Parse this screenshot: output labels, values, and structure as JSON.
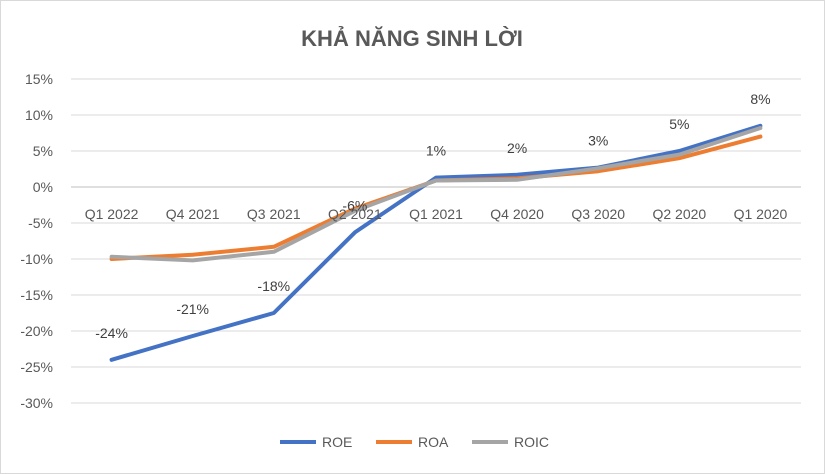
{
  "chart_data": {
    "type": "line",
    "title": "KHẢ NĂNG SINH LỜI",
    "categories": [
      "Q1 2022",
      "Q4 2021",
      "Q3 2021",
      "Q2 2021",
      "Q1 2021",
      "Q4 2020",
      "Q3 2020",
      "Q2 2020",
      "Q1 2020"
    ],
    "y_ticks": [
      "15%",
      "10%",
      "5%",
      "0%",
      "-5%",
      "-10%",
      "-15%",
      "-20%",
      "-25%",
      "-30%"
    ],
    "ylim": [
      -30,
      15
    ],
    "y_unit": "%",
    "grid": "horizontal",
    "legend_position": "bottom",
    "series": [
      {
        "name": "ROE",
        "color": "#4472c4",
        "values": [
          -24.0,
          -20.7,
          -17.5,
          -6.3,
          1.3,
          1.7,
          2.7,
          5.0,
          8.5
        ]
      },
      {
        "name": "ROA",
        "color": "#ed7d31",
        "values": [
          -10.0,
          -9.4,
          -8.3,
          -3.0,
          0.9,
          1.2,
          2.2,
          4.0,
          7.0
        ]
      },
      {
        "name": "ROIC",
        "color": "#a5a5a5",
        "values": [
          -9.7,
          -10.2,
          -9.0,
          -3.3,
          0.9,
          1.0,
          2.6,
          4.5,
          8.2
        ]
      }
    ],
    "data_labels": {
      "series": "ROE",
      "labels": [
        "-24%",
        "-21%",
        "-18%",
        "-6%",
        "1%",
        "2%",
        "3%",
        "5%",
        "8%"
      ]
    }
  }
}
